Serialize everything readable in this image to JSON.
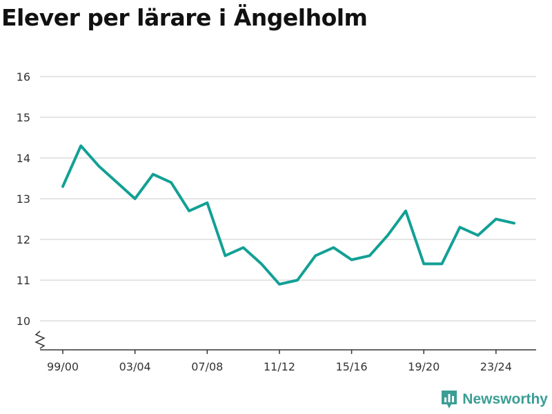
{
  "chart_data": {
    "type": "line",
    "title": "Elever per lärare i Ängelholm",
    "xlabel": "",
    "ylabel": "",
    "x": [
      "99/00",
      "00/01",
      "01/02",
      "02/03",
      "03/04",
      "04/05",
      "05/06",
      "06/07",
      "07/08",
      "08/09",
      "09/10",
      "10/11",
      "11/12",
      "12/13",
      "13/14",
      "14/15",
      "15/16",
      "16/17",
      "17/18",
      "18/19",
      "19/20",
      "20/21",
      "21/22",
      "22/23",
      "23/24",
      "24/25"
    ],
    "values": [
      13.3,
      14.3,
      13.8,
      13.4,
      13.0,
      13.6,
      13.4,
      12.7,
      12.9,
      11.6,
      11.8,
      11.4,
      10.9,
      11.0,
      11.6,
      11.8,
      11.5,
      11.6,
      12.1,
      12.7,
      11.4,
      11.4,
      12.3,
      12.1,
      12.5,
      12.4
    ],
    "x_tick_labels": [
      "99/00",
      "03/04",
      "07/08",
      "11/12",
      "15/16",
      "19/20",
      "23/24"
    ],
    "y_ticks": [
      10,
      11,
      12,
      13,
      14,
      15,
      16
    ],
    "ylim": [
      10,
      16
    ],
    "y_axis_break": true,
    "grid": true,
    "line_color": "#12a095"
  },
  "branding": {
    "name": "Newsworthy",
    "color": "#3a9e95",
    "icon": "bar-chart-logo-icon"
  }
}
